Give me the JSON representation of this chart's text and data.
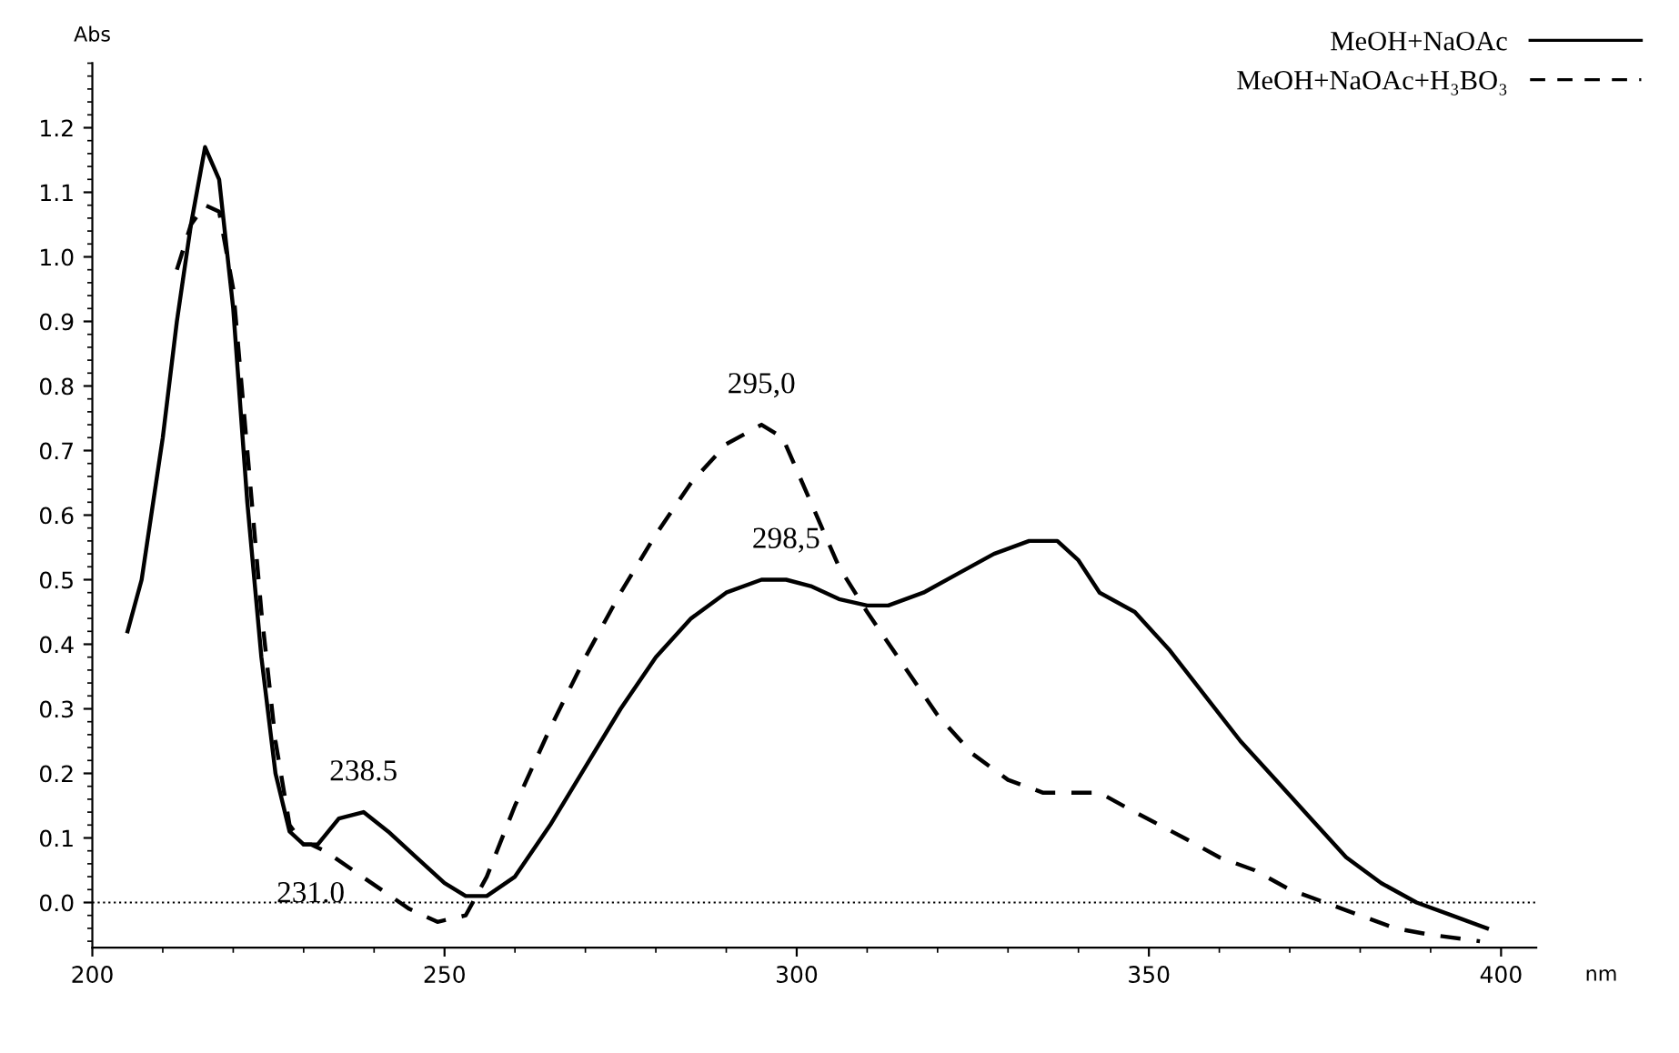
{
  "chart_data": {
    "type": "line",
    "xlabel": "nm",
    "ylabel": "Abs",
    "xlim": [
      200,
      405
    ],
    "ylim": [
      -0.07,
      1.3
    ],
    "xticks": [
      200,
      250,
      300,
      350,
      400
    ],
    "yticks": [
      {
        "value": 0,
        "label": "0.0"
      },
      {
        "value": 0.1,
        "label": "0.1"
      },
      {
        "value": 0.2,
        "label": "0.2"
      },
      {
        "value": 0.3,
        "label": "0.3"
      },
      {
        "value": 0.4,
        "label": "0.4"
      },
      {
        "value": 0.5,
        "label": "0.5"
      },
      {
        "value": 0.6,
        "label": "0.6"
      },
      {
        "value": 0.7,
        "label": "0.7"
      },
      {
        "value": 0.8,
        "label": "0.8"
      },
      {
        "value": 0.9,
        "label": "0.9"
      },
      {
        "value": 1.0,
        "label": "1.0"
      },
      {
        "value": 1.1,
        "label": "1.1"
      },
      {
        "value": 1.2,
        "label": "1.2"
      }
    ],
    "grid": false,
    "legend": "top right",
    "marker": "none",
    "series": [
      {
        "name": "MeOH+NaOAc",
        "color": "#000000",
        "line_style": "solid",
        "x": [
          205,
          207,
          210,
          212,
          214,
          216,
          218,
          220,
          222,
          224,
          226,
          228,
          230,
          232,
          235,
          238.5,
          242,
          246,
          250,
          253,
          256,
          260,
          265,
          270,
          275,
          280,
          285,
          290,
          295,
          298.5,
          302,
          306,
          310,
          313,
          318,
          323,
          328,
          333,
          337,
          340,
          343,
          348,
          353,
          358,
          363,
          368,
          373,
          378,
          383,
          388,
          393,
          398
        ],
        "values": [
          0.42,
          0.5,
          0.72,
          0.9,
          1.05,
          1.17,
          1.12,
          0.92,
          0.62,
          0.38,
          0.2,
          0.11,
          0.09,
          0.09,
          0.13,
          0.14,
          0.11,
          0.07,
          0.03,
          0.01,
          0.01,
          0.04,
          0.12,
          0.21,
          0.3,
          0.38,
          0.44,
          0.48,
          0.5,
          0.5,
          0.49,
          0.47,
          0.46,
          0.46,
          0.48,
          0.51,
          0.54,
          0.56,
          0.56,
          0.53,
          0.48,
          0.45,
          0.39,
          0.32,
          0.25,
          0.19,
          0.13,
          0.07,
          0.03,
          0.0,
          -0.02,
          -0.04
        ]
      },
      {
        "name": "MeOH+NaOAc+H₃BO₃",
        "color": "#000000",
        "line_style": "dashed",
        "x": [
          212,
          214,
          216,
          218,
          220,
          222,
          224,
          226,
          228,
          230,
          231,
          233,
          245,
          249,
          253,
          256,
          260,
          265,
          270,
          275,
          280,
          285,
          290,
          295,
          298,
          302,
          306,
          310,
          315,
          320,
          325,
          330,
          335,
          340,
          343,
          348,
          355,
          360,
          365,
          370,
          375,
          380,
          385,
          390,
          397
        ],
        "values": [
          0.98,
          1.05,
          1.08,
          1.07,
          0.95,
          0.7,
          0.45,
          0.25,
          0.12,
          0.09,
          0.09,
          0.08,
          -0.01,
          -0.03,
          -0.02,
          0.04,
          0.15,
          0.27,
          0.38,
          0.48,
          0.57,
          0.65,
          0.71,
          0.74,
          0.72,
          0.62,
          0.52,
          0.45,
          0.37,
          0.29,
          0.23,
          0.19,
          0.17,
          0.17,
          0.17,
          0.14,
          0.1,
          0.07,
          0.05,
          0.02,
          0.0,
          -0.02,
          -0.04,
          -0.05,
          -0.06
        ]
      }
    ],
    "ref_lines": [
      {
        "axis": "y",
        "value": 0,
        "line_style": "dotted",
        "color": "#000000"
      }
    ],
    "annotations": [
      {
        "text": "238.5",
        "x": 238.5,
        "y": 0.14
      },
      {
        "text": "231.0",
        "x": 231,
        "y": 0.08
      },
      {
        "text": "295,0",
        "x": 295,
        "y": 0.74
      },
      {
        "text": "298,5",
        "x": 298.5,
        "y": 0.5
      }
    ]
  }
}
